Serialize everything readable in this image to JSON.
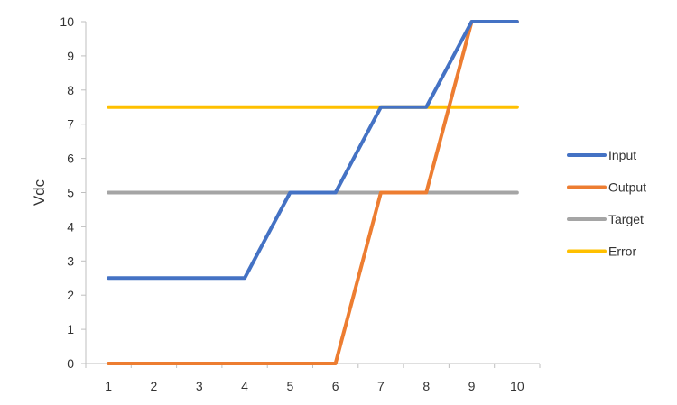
{
  "chart_data": {
    "type": "line",
    "title": "",
    "xlabel": "",
    "ylabel": "Vdc",
    "x": [
      1,
      2,
      3,
      4,
      5,
      6,
      7,
      8,
      9,
      10
    ],
    "ylim": [
      0,
      10
    ],
    "yticks": [
      0,
      1,
      2,
      3,
      4,
      5,
      6,
      7,
      8,
      9,
      10
    ],
    "grid": false,
    "legend_position": "right",
    "series": [
      {
        "name": "Input",
        "color": "#4472C4",
        "values": [
          2.5,
          2.5,
          2.5,
          2.5,
          5,
          5,
          7.5,
          7.5,
          10,
          10
        ]
      },
      {
        "name": "Output",
        "color": "#ED7D31",
        "values": [
          0,
          0,
          0,
          0,
          0,
          0,
          5,
          5,
          10,
          10
        ]
      },
      {
        "name": "Target",
        "color": "#A5A5A5",
        "values": [
          5,
          5,
          5,
          5,
          5,
          5,
          5,
          5,
          5,
          5
        ]
      },
      {
        "name": "Error",
        "color": "#FFC000",
        "values": [
          7.5,
          7.5,
          7.5,
          7.5,
          7.5,
          7.5,
          7.5,
          7.5,
          7.5,
          7.5
        ]
      }
    ]
  }
}
